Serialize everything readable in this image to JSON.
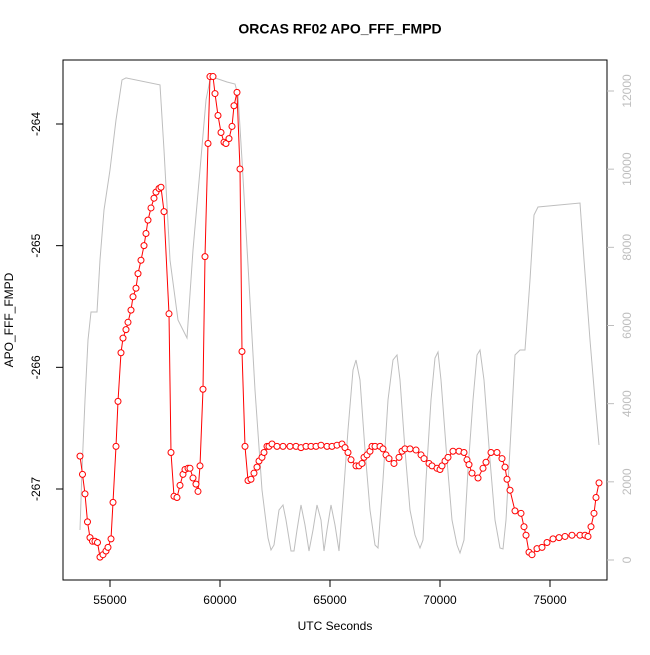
{
  "chart_data": {
    "type": "line",
    "title": "ORCAS RF02 APO_FFF_FMPD",
    "xlabel": "UTC Seconds",
    "ylabel": "APO_FFF_FMPD",
    "xlim": [
      52864,
      77591
    ],
    "xticks": [
      55000,
      60000,
      65000,
      70000,
      75000
    ],
    "ylim": [
      -267.748,
      -263.474
    ],
    "yticks": [
      -267,
      -266,
      -265,
      -264
    ],
    "y2lim": [
      -512,
      12793
    ],
    "y2ticks": [
      0,
      2000,
      4000,
      6000,
      8000,
      10000,
      12000
    ],
    "series": [
      {
        "color": "#bebebe",
        "axis": "y2",
        "markers": false,
        "x": [
          53637,
          53728,
          53864,
          54000,
          54137,
          54409,
          54546,
          54728,
          55000,
          55273,
          55546,
          55727,
          57273,
          57455,
          57728,
          58091,
          58500,
          58773,
          59091,
          59364,
          59545,
          59773,
          60318,
          60682,
          60818,
          61000,
          61273,
          61591,
          61909,
          62182,
          62318,
          62455,
          62682,
          62864,
          63000,
          63227,
          63364,
          63500,
          63682,
          63864,
          64046,
          64228,
          64410,
          64591,
          64728,
          64864,
          65046,
          65228,
          65410,
          65591,
          65818,
          66046,
          66182,
          66364,
          66591,
          66818,
          67046,
          67182,
          67410,
          67637,
          67864,
          68046,
          68182,
          68410,
          68637,
          68864,
          69091,
          69228,
          69364,
          69591,
          69773,
          69910,
          70046,
          70319,
          70546,
          70773,
          70910,
          71091,
          71273,
          71501,
          71682,
          71819,
          72001,
          72273,
          72500,
          72728,
          72864,
          73001,
          73228,
          73410,
          73637,
          73864,
          74091,
          74273,
          74455,
          76364,
          76546,
          76819,
          77046,
          77228
        ],
        "values": [
          768,
          2303,
          4094,
          5630,
          6346,
          6346,
          7677,
          8956,
          9980,
          11259,
          12283,
          12334,
          12155,
          10491,
          7677,
          6141,
          5681,
          7932,
          9980,
          11771,
          12283,
          12334,
          12231,
          12180,
          11899,
          10235,
          7549,
          4350,
          1791,
          563,
          256,
          384,
          1279,
          1407,
          1024,
          230,
          230,
          768,
          1407,
          895,
          230,
          768,
          1407,
          1024,
          230,
          768,
          1407,
          895,
          230,
          1535,
          3327,
          4862,
          5118,
          4606,
          2815,
          1279,
          384,
          307,
          2047,
          4094,
          5118,
          5246,
          4606,
          2815,
          1279,
          640,
          307,
          512,
          2047,
          4094,
          5169,
          5322,
          4606,
          2559,
          1024,
          384,
          179,
          512,
          2303,
          4094,
          5246,
          5374,
          4606,
          2559,
          1024,
          307,
          281,
          1024,
          3327,
          5246,
          5374,
          5374,
          7165,
          8828,
          9033,
          9135,
          7677,
          5630,
          4094,
          2943
        ]
      },
      {
        "color": "#ff0000",
        "markers": true,
        "x": [
          53637,
          53750,
          53864,
          53977,
          54091,
          54205,
          54318,
          54432,
          54546,
          54682,
          54818,
          54909,
          55046,
          55137,
          55273,
          55364,
          55500,
          55591,
          55727,
          55818,
          55955,
          56046,
          56182,
          56273,
          56409,
          56546,
          56636,
          56727,
          56864,
          57000,
          57091,
          57227,
          57318,
          57455,
          57682,
          57773,
          57909,
          58045,
          58182,
          58318,
          58409,
          58546,
          58636,
          58773,
          58909,
          59000,
          59091,
          59227,
          59318,
          59455,
          59545,
          59682,
          59773,
          59909,
          60046,
          60182,
          60273,
          60409,
          60546,
          60636,
          60773,
          60909,
          61000,
          61137,
          61273,
          61409,
          61545,
          61682,
          61773,
          61909,
          62000,
          62137,
          62227,
          62364,
          62591,
          62864,
          63182,
          63455,
          63682,
          63909,
          64136,
          64364,
          64591,
          64864,
          65091,
          65318,
          65546,
          65682,
          65818,
          65955,
          66182,
          66318,
          66455,
          66546,
          66682,
          66818,
          66909,
          67046,
          67273,
          67409,
          67546,
          67682,
          67909,
          68137,
          68273,
          68409,
          68637,
          68909,
          69137,
          69273,
          69500,
          69637,
          69864,
          70000,
          70091,
          70228,
          70364,
          70591,
          70864,
          71091,
          71227,
          71318,
          71455,
          71728,
          71955,
          72091,
          72318,
          72591,
          72818,
          72955,
          73046,
          73182,
          73409,
          73682,
          73819,
          73910,
          74046,
          74182,
          74409,
          74637,
          74864,
          75137,
          75410,
          75682,
          75999,
          76363,
          76591,
          76727,
          76864,
          77000,
          77091,
          77228
        ],
        "values": [
          -266.73,
          -266.88,
          -267.04,
          -267.27,
          -267.4,
          -267.43,
          -267.43,
          -267.44,
          -267.56,
          -267.54,
          -267.51,
          -267.48,
          -267.41,
          -267.11,
          -266.65,
          -266.28,
          -265.88,
          -265.76,
          -265.69,
          -265.63,
          -265.53,
          -265.42,
          -265.35,
          -265.23,
          -265.12,
          -265.0,
          -264.9,
          -264.79,
          -264.69,
          -264.61,
          -264.56,
          -264.53,
          -264.52,
          -264.72,
          -265.56,
          -266.7,
          -267.06,
          -267.07,
          -266.97,
          -266.88,
          -266.84,
          -266.83,
          -266.83,
          -266.91,
          -266.96,
          -267.02,
          -266.81,
          -266.18,
          -265.09,
          -264.16,
          -263.61,
          -263.61,
          -263.75,
          -263.93,
          -264.07,
          -264.15,
          -264.16,
          -264.12,
          -264.02,
          -263.85,
          -263.74,
          -264.37,
          -265.87,
          -266.65,
          -266.93,
          -266.92,
          -266.87,
          -266.82,
          -266.77,
          -266.74,
          -266.7,
          -266.65,
          -266.65,
          -266.63,
          -266.65,
          -266.65,
          -266.65,
          -266.65,
          -266.66,
          -266.65,
          -266.65,
          -266.65,
          -266.64,
          -266.65,
          -266.65,
          -266.64,
          -266.63,
          -266.66,
          -266.7,
          -266.76,
          -266.81,
          -266.81,
          -266.79,
          -266.74,
          -266.72,
          -266.69,
          -266.65,
          -266.65,
          -266.65,
          -266.67,
          -266.72,
          -266.75,
          -266.79,
          -266.74,
          -266.69,
          -266.67,
          -266.67,
          -266.68,
          -266.72,
          -266.75,
          -266.79,
          -266.81,
          -266.83,
          -266.84,
          -266.81,
          -266.77,
          -266.74,
          -266.69,
          -266.69,
          -266.7,
          -266.76,
          -266.8,
          -266.87,
          -266.91,
          -266.83,
          -266.78,
          -266.7,
          -266.7,
          -266.75,
          -266.82,
          -266.92,
          -267.01,
          -267.18,
          -267.2,
          -267.31,
          -267.38,
          -267.52,
          -267.54,
          -267.49,
          -267.48,
          -267.44,
          -267.41,
          -267.4,
          -267.39,
          -267.38,
          -267.38,
          -267.38,
          -267.39,
          -267.31,
          -267.2,
          -267.07,
          -266.95
        ]
      }
    ]
  }
}
